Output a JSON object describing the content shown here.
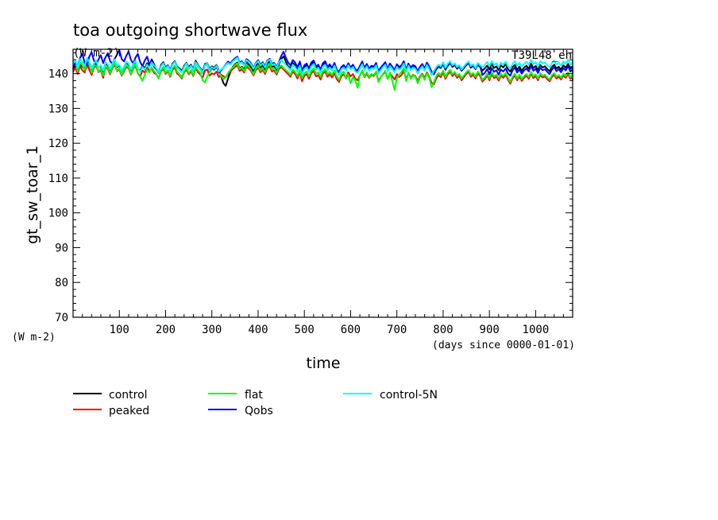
{
  "chart_data": {
    "type": "line",
    "title": "toa outgoing shortwave flux",
    "units_label": "(W m-2)",
    "run_label": "T39L48_eh",
    "ylabel": "gt_sw_toar_1",
    "y_unit_label": "(W m-2)",
    "xlabel": "time",
    "x_unit_label": "(days since 0000-01-01)",
    "xlim": [
      0,
      1080
    ],
    "ylim": [
      70,
      147
    ],
    "x_ticks": [
      100,
      200,
      300,
      400,
      500,
      600,
      700,
      800,
      900,
      1000
    ],
    "y_ticks": [
      70,
      80,
      90,
      100,
      110,
      120,
      130,
      140
    ],
    "grid": false,
    "legend_position": "bottom",
    "x_step_days": 5,
    "series": [
      {
        "name": "control",
        "color": "#000000",
        "values": [
          141.2,
          142.5,
          140.8,
          143.1,
          142.0,
          141.5,
          143.6,
          142.2,
          140.9,
          142.8,
          143.4,
          141.7,
          142.1,
          140.6,
          143.0,
          142.4,
          141.1,
          142.9,
          143.8,
          141.9,
          142.3,
          140.7,
          141.8,
          143.2,
          142.6,
          141.0,
          142.7,
          143.5,
          141.4,
          140.9,
          142.2,
          141.6,
          143.0,
          142.1,
          144.1,
          142.8,
          141.3,
          140.2,
          142.5,
          143.3,
          141.8,
          142.4,
          141.0,
          142.9,
          143.6,
          142.0,
          141.5,
          140.8,
          142.3,
          143.1,
          141.9,
          142.6,
          141.2,
          143.7,
          142.4,
          141.6,
          140.7,
          142.8,
          143.0,
          141.4,
          142.1,
          141.8,
          142.5,
          140.9,
          139.2,
          137.3,
          136.5,
          138.6,
          140.4,
          141.9,
          142.7,
          143.2,
          141.5,
          142.0,
          141.1,
          143.4,
          142.6,
          141.8,
          140.6,
          142.3,
          143.0,
          141.7,
          142.4,
          141.2,
          142.9,
          143.5,
          141.9,
          142.2,
          141.0,
          142.7,
          144.2,
          145.0,
          143.4,
          142.1,
          141.6,
          143.1,
          142.5,
          141.3,
          142.8,
          140.7,
          141.9,
          142.4,
          141.1,
          142.6,
          143.3,
          141.8,
          142.0,
          140.9,
          142.5,
          143.0,
          141.6,
          142.3,
          141.4,
          142.7,
          141.0,
          140.5,
          141.8,
          142.2,
          141.3,
          142.9,
          141.7,
          142.4,
          141.1,
          140.8,
          142.0,
          143.2,
          141.6,
          142.5,
          141.4,
          142.1,
          141.9,
          142.8,
          140.7,
          141.5,
          142.3,
          143.0,
          141.2,
          142.6,
          141.8,
          140.9,
          142.4,
          141.6,
          142.1,
          143.3,
          141.0,
          142.7,
          141.5,
          142.2,
          141.9,
          140.6,
          141.8,
          142.5,
          141.3,
          142.9,
          141.7,
          140.4,
          139.8,
          141.2,
          142.0,
          141.6,
          142.8,
          141.1,
          142.3,
          143.1,
          141.9,
          142.5,
          141.4,
          142.0,
          140.8,
          141.6,
          142.4,
          143.0,
          141.7,
          142.2,
          141.3,
          142.6,
          141.9,
          140.9,
          141.5,
          142.3,
          141.2,
          142.8,
          141.6,
          142.1,
          141.0,
          142.4,
          141.8,
          142.7,
          141.3,
          140.6,
          141.9,
          142.5,
          141.1,
          142.0,
          140.8,
          141.7,
          142.3,
          141.4,
          142.9,
          141.6,
          142.2,
          141.0,
          142.5,
          141.8,
          142.1,
          141.3,
          140.7,
          141.9,
          142.6,
          141.5,
          142.0,
          141.2,
          142.4,
          141.7,
          142.8,
          141.4,
          142.1,
          141.0,
          142.5,
          141.8,
          142.3
        ]
      },
      {
        "name": "peaked",
        "color": "#ff0000",
        "values": [
          140.5,
          141.8,
          139.9,
          142.2,
          141.0,
          140.3,
          142.5,
          141.1,
          139.6,
          141.7,
          142.3,
          140.4,
          141.0,
          138.8,
          141.9,
          141.3,
          139.8,
          141.6,
          142.6,
          140.7,
          141.2,
          139.4,
          140.6,
          142.0,
          141.5,
          139.7,
          141.4,
          142.2,
          140.1,
          139.2,
          140.9,
          140.3,
          141.8,
          140.8,
          141.5,
          140.2,
          139.8,
          138.7,
          140.6,
          141.4,
          139.9,
          140.7,
          139.1,
          141.1,
          141.8,
          140.0,
          139.5,
          138.6,
          140.3,
          141.2,
          139.8,
          140.6,
          139.3,
          141.5,
          140.4,
          139.7,
          138.8,
          140.9,
          141.2,
          139.4,
          140.1,
          139.8,
          140.6,
          139.0,
          139.7,
          139.2,
          138.9,
          139.8,
          140.6,
          141.3,
          141.9,
          142.4,
          140.8,
          141.2,
          140.3,
          142.0,
          141.5,
          140.7,
          139.5,
          141.0,
          141.8,
          140.4,
          141.1,
          139.9,
          141.6,
          142.1,
          140.6,
          140.9,
          139.7,
          141.3,
          141.9,
          141.2,
          140.5,
          139.8,
          139.1,
          140.6,
          139.9,
          138.6,
          140.3,
          137.8,
          139.4,
          139.9,
          138.5,
          140.1,
          140.8,
          139.2,
          139.6,
          138.3,
          140.0,
          140.6,
          139.1,
          139.8,
          138.9,
          140.2,
          138.4,
          137.6,
          139.3,
          139.8,
          138.7,
          140.4,
          139.2,
          139.9,
          138.6,
          138.1,
          139.5,
          140.7,
          139.0,
          140.0,
          138.8,
          139.6,
          139.3,
          140.3,
          138.0,
          138.9,
          139.8,
          140.5,
          138.6,
          140.1,
          139.2,
          138.3,
          139.9,
          139.0,
          139.6,
          140.8,
          138.4,
          140.2,
          138.9,
          139.7,
          139.3,
          137.9,
          139.2,
          140.0,
          138.7,
          140.4,
          139.1,
          137.4,
          136.9,
          138.6,
          139.5,
          139.0,
          140.3,
          138.5,
          139.8,
          140.6,
          139.3,
          140.0,
          138.8,
          139.4,
          138.1,
          139.0,
          139.9,
          140.5,
          139.1,
          139.7,
          138.6,
          140.1,
          139.3,
          137.7,
          138.4,
          139.5,
          138.1,
          139.9,
          138.7,
          139.2,
          138.0,
          139.4,
          138.8,
          139.7,
          138.3,
          137.1,
          138.6,
          139.5,
          138.1,
          139.2,
          137.9,
          138.8,
          139.4,
          138.5,
          140.0,
          138.7,
          139.3,
          138.1,
          139.6,
          138.9,
          139.2,
          138.4,
          137.8,
          139.0,
          139.7,
          138.6,
          139.1,
          138.3,
          139.5,
          138.8,
          139.9,
          138.5,
          139.2,
          138.1,
          139.6,
          138.9,
          139.4
        ]
      },
      {
        "name": "flat",
        "color": "#00ff00",
        "values": [
          141.8,
          142.9,
          140.6,
          143.3,
          142.4,
          141.0,
          143.8,
          142.5,
          140.2,
          142.0,
          142.8,
          140.5,
          141.3,
          139.4,
          142.2,
          141.6,
          140.1,
          141.9,
          143.1,
          140.8,
          141.5,
          139.6,
          140.9,
          142.4,
          141.8,
          139.8,
          141.6,
          142.7,
          140.3,
          139.1,
          137.9,
          139.6,
          141.2,
          140.4,
          141.8,
          140.7,
          139.9,
          138.6,
          140.8,
          141.9,
          140.2,
          141.0,
          139.4,
          141.5,
          142.3,
          140.5,
          139.8,
          138.9,
          140.6,
          141.7,
          140.1,
          141.0,
          139.5,
          142.0,
          140.9,
          140.2,
          138.1,
          137.5,
          139.2,
          140.3,
          141.6,
          141.0,
          141.9,
          140.4,
          139.3,
          138.4,
          139.0,
          140.2,
          141.1,
          141.8,
          142.5,
          143.0,
          141.3,
          141.8,
          140.7,
          142.6,
          142.0,
          141.1,
          139.9,
          141.5,
          142.3,
          140.9,
          141.6,
          140.4,
          142.1,
          142.8,
          141.2,
          141.5,
          140.2,
          141.9,
          142.4,
          141.6,
          141.0,
          140.4,
          139.6,
          141.2,
          140.5,
          139.3,
          140.9,
          138.7,
          140.1,
          140.6,
          139.2,
          140.8,
          141.5,
          139.9,
          140.4,
          139.0,
          140.7,
          141.3,
          139.8,
          140.5,
          139.6,
          140.9,
          139.1,
          138.2,
          140.0,
          140.6,
          138.5,
          139.8,
          137.2,
          139.0,
          138.1,
          135.9,
          139.4,
          141.0,
          139.2,
          140.4,
          139.0,
          139.9,
          139.5,
          140.6,
          137.6,
          138.8,
          139.9,
          140.8,
          138.4,
          140.4,
          137.9,
          135.3,
          138.7,
          139.8,
          140.5,
          141.6,
          137.8,
          140.3,
          138.5,
          139.6,
          139.1,
          137.2,
          138.9,
          139.8,
          138.2,
          140.1,
          138.8,
          136.1,
          137.5,
          139.3,
          140.2,
          139.6,
          140.9,
          139.0,
          140.3,
          141.1,
          139.8,
          140.5,
          139.3,
          139.9,
          138.6,
          139.5,
          140.4,
          141.0,
          139.6,
          140.2,
          139.1,
          140.6,
          139.8,
          138.2,
          138.9,
          140.0,
          138.6,
          140.4,
          139.2,
          139.7,
          138.5,
          139.9,
          139.3,
          140.2,
          138.8,
          137.6,
          139.1,
          140.0,
          138.6,
          139.7,
          138.4,
          139.3,
          139.9,
          139.0,
          140.5,
          139.2,
          139.8,
          138.6,
          140.1,
          139.4,
          139.7,
          138.9,
          138.3,
          139.5,
          140.2,
          139.1,
          139.6,
          138.8,
          140.0,
          139.3,
          140.4,
          139.0,
          139.7,
          138.6,
          140.1,
          139.4,
          139.9
        ]
      },
      {
        "name": "Qobs",
        "color": "#0000ff",
        "values": [
          141.5,
          143.2,
          142.0,
          144.5,
          145.8,
          143.1,
          142.4,
          144.9,
          146.2,
          143.8,
          142.6,
          144.1,
          145.3,
          143.0,
          144.7,
          145.9,
          143.6,
          142.8,
          144.3,
          145.5,
          146.8,
          144.2,
          143.5,
          145.1,
          146.4,
          144.0,
          142.9,
          144.6,
          145.7,
          143.4,
          142.1,
          143.8,
          144.9,
          142.7,
          143.5,
          142.0,
          141.3,
          140.6,
          142.2,
          143.1,
          141.6,
          142.4,
          140.9,
          142.7,
          143.5,
          141.8,
          141.2,
          140.5,
          142.0,
          142.9,
          141.4,
          142.2,
          140.8,
          143.2,
          142.1,
          141.3,
          140.2,
          142.4,
          142.8,
          140.9,
          141.7,
          141.2,
          142.0,
          140.3,
          140.9,
          141.8,
          142.6,
          143.5,
          142.9,
          143.8,
          144.4,
          144.9,
          143.2,
          143.6,
          142.5,
          144.2,
          143.7,
          142.9,
          141.6,
          143.1,
          143.9,
          142.6,
          143.3,
          142.1,
          143.8,
          144.3,
          142.8,
          143.1,
          141.9,
          143.4,
          145.1,
          146.3,
          144.6,
          143.2,
          142.4,
          143.9,
          143.2,
          141.8,
          143.5,
          140.9,
          142.4,
          142.9,
          141.5,
          143.2,
          143.8,
          142.1,
          142.6,
          141.2,
          143.0,
          143.6,
          141.9,
          142.7,
          141.6,
          143.1,
          141.2,
          140.4,
          141.9,
          142.5,
          141.6,
          143.0,
          141.8,
          142.6,
          141.3,
          140.9,
          142.2,
          143.5,
          141.7,
          142.8,
          141.5,
          142.3,
          142.0,
          143.1,
          140.8,
          141.7,
          142.5,
          143.3,
          141.4,
          142.9,
          142.0,
          141.1,
          142.7,
          141.9,
          142.4,
          143.6,
          141.2,
          142.9,
          141.8,
          142.5,
          142.1,
          140.7,
          142.0,
          142.8,
          141.5,
          143.2,
          142.0,
          140.6,
          139.8,
          141.4,
          142.3,
          141.8,
          143.1,
          141.4,
          142.6,
          143.4,
          142.1,
          142.8,
          141.6,
          142.2,
          140.9,
          141.8,
          142.6,
          143.2,
          141.9,
          142.4,
          141.3,
          142.9,
          142.1,
          139.6,
          140.2,
          141.3,
          139.8,
          141.6,
          140.5,
          141.0,
          139.7,
          141.2,
          140.6,
          141.5,
          140.1,
          139.4,
          140.9,
          141.8,
          140.3,
          141.2,
          140.0,
          140.9,
          141.5,
          140.6,
          142.2,
          140.8,
          141.4,
          140.2,
          141.7,
          141.0,
          141.3,
          140.5,
          139.9,
          141.1,
          141.9,
          140.7,
          141.3,
          140.4,
          141.6,
          140.9,
          142.1,
          140.6,
          141.3,
          140.2,
          141.8,
          141.1,
          141.6
        ]
      },
      {
        "name": "control-5N",
        "color": "#00ffff",
        "values": [
          142.8,
          143.9,
          141.7,
          144.2,
          143.4,
          142.1,
          144.5,
          143.3,
          141.4,
          142.9,
          143.8,
          141.6,
          142.4,
          140.9,
          143.2,
          142.7,
          141.3,
          142.9,
          144.0,
          142.1,
          142.6,
          140.8,
          142.0,
          143.4,
          142.9,
          141.2,
          142.8,
          143.7,
          141.5,
          140.6,
          141.9,
          141.2,
          142.6,
          141.7,
          143.2,
          142.4,
          141.6,
          140.3,
          142.1,
          143.0,
          141.3,
          142.2,
          140.7,
          142.6,
          143.4,
          141.8,
          141.1,
          140.4,
          142.0,
          142.9,
          141.5,
          142.3,
          140.9,
          143.3,
          142.2,
          141.4,
          140.3,
          142.5,
          142.9,
          141.0,
          141.9,
          141.5,
          142.3,
          140.6,
          141.2,
          141.8,
          142.4,
          143.1,
          142.6,
          143.5,
          144.0,
          144.6,
          142.9,
          143.3,
          142.2,
          143.9,
          143.4,
          142.6,
          141.4,
          142.9,
          143.6,
          142.3,
          143.0,
          141.8,
          143.5,
          144.1,
          142.5,
          142.8,
          141.6,
          143.2,
          144.0,
          143.2,
          142.5,
          141.8,
          141.0,
          142.6,
          141.9,
          140.6,
          142.3,
          139.8,
          141.4,
          141.9,
          140.5,
          142.1,
          142.8,
          141.2,
          141.7,
          140.3,
          142.0,
          142.6,
          141.0,
          141.8,
          140.9,
          142.3,
          140.5,
          139.7,
          141.3,
          141.8,
          140.9,
          142.4,
          141.2,
          141.9,
          140.6,
          140.2,
          141.5,
          142.7,
          141.0,
          142.1,
          140.8,
          141.6,
          141.3,
          142.4,
          140.1,
          141.0,
          141.9,
          142.6,
          140.7,
          142.2,
          141.3,
          140.4,
          142.0,
          141.1,
          141.7,
          142.9,
          140.5,
          142.3,
          141.0,
          141.8,
          141.4,
          140.0,
          141.3,
          142.1,
          140.8,
          142.5,
          141.2,
          139.6,
          140.8,
          141.9,
          142.6,
          142.1,
          143.3,
          141.7,
          142.9,
          143.6,
          142.4,
          143.0,
          141.9,
          142.5,
          141.2,
          142.1,
          142.9,
          143.5,
          142.2,
          142.7,
          141.6,
          143.1,
          142.4,
          141.9,
          142.5,
          143.4,
          142.1,
          143.6,
          142.5,
          143.0,
          141.8,
          143.2,
          142.6,
          143.5,
          142.1,
          141.4,
          142.8,
          143.6,
          142.2,
          143.1,
          141.9,
          142.8,
          143.4,
          142.5,
          144.0,
          142.7,
          143.3,
          142.0,
          143.6,
          142.9,
          143.2,
          142.4,
          141.8,
          143.0,
          143.7,
          142.6,
          143.1,
          142.3,
          143.5,
          142.8,
          144.0,
          142.5,
          143.2,
          142.1,
          143.7,
          143.0,
          143.5
        ]
      }
    ]
  }
}
